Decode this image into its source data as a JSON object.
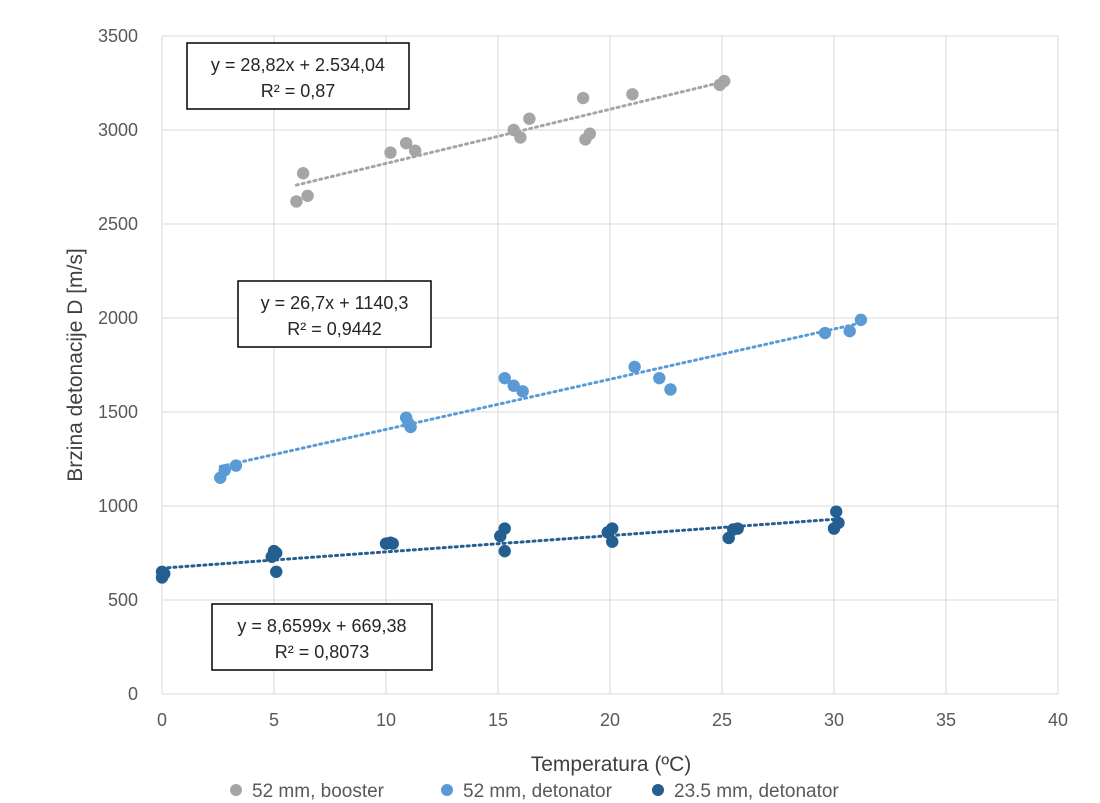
{
  "chart_data": {
    "type": "scatter",
    "xlabel": "Temperatura (ºC)",
    "ylabel": "Brzina detonacije D [m/s]",
    "xlim": [
      0,
      40
    ],
    "ylim": [
      0,
      3500
    ],
    "x_ticks": [
      0,
      5,
      10,
      15,
      20,
      25,
      30,
      35,
      40
    ],
    "y_ticks": [
      0,
      500,
      1000,
      1500,
      2000,
      2500,
      3000,
      3500
    ],
    "grid": true,
    "legend_position": "bottom",
    "series": [
      {
        "name": "52 mm, booster",
        "color": "#a5a5a5",
        "trendline": {
          "slope": 28.82,
          "intercept": 2534.04,
          "x_range": [
            6,
            25
          ]
        },
        "equation": "y = 28,82x + 2.534,04",
        "r2": "R² = 0,87",
        "points": [
          [
            6.0,
            2620
          ],
          [
            6.3,
            2770
          ],
          [
            6.5,
            2650
          ],
          [
            10.2,
            2880
          ],
          [
            10.9,
            2930
          ],
          [
            11.3,
            2890
          ],
          [
            15.7,
            3000
          ],
          [
            16.0,
            2960
          ],
          [
            16.4,
            3060
          ],
          [
            18.8,
            3170
          ],
          [
            18.9,
            2950
          ],
          [
            19.1,
            2980
          ],
          [
            21.0,
            3190
          ],
          [
            24.9,
            3240
          ],
          [
            25.1,
            3260
          ]
        ]
      },
      {
        "name": "52 mm, detonator",
        "color": "#5b9bd5",
        "trendline": {
          "slope": 26.7,
          "intercept": 1140.3,
          "x_range": [
            2.6,
            31
          ]
        },
        "equation": "y = 26,7x + 1140,3",
        "r2": "R² = 0,9442",
        "points": [
          [
            2.6,
            1150
          ],
          [
            2.8,
            1190
          ],
          [
            3.3,
            1215
          ],
          [
            10.9,
            1470
          ],
          [
            11.0,
            1440
          ],
          [
            11.1,
            1420
          ],
          [
            15.3,
            1680
          ],
          [
            15.7,
            1640
          ],
          [
            16.1,
            1610
          ],
          [
            21.1,
            1740
          ],
          [
            22.2,
            1680
          ],
          [
            22.7,
            1620
          ],
          [
            29.6,
            1920
          ],
          [
            30.7,
            1930
          ],
          [
            31.2,
            1990
          ]
        ]
      },
      {
        "name": "23.5 mm, detonator",
        "color": "#255e91",
        "trendline": {
          "slope": 8.6599,
          "intercept": 669.38,
          "x_range": [
            0,
            30.1
          ]
        },
        "equation": "y = 8,6599x + 669,38",
        "r2": "R² = 0,8073",
        "points": [
          [
            0.0,
            620
          ],
          [
            0.0,
            650
          ],
          [
            0.1,
            640
          ],
          [
            4.9,
            730
          ],
          [
            5.0,
            760
          ],
          [
            5.1,
            750
          ],
          [
            5.1,
            650
          ],
          [
            10.0,
            800
          ],
          [
            10.2,
            805
          ],
          [
            10.3,
            800
          ],
          [
            15.1,
            840
          ],
          [
            15.3,
            880
          ],
          [
            15.3,
            760
          ],
          [
            19.9,
            860
          ],
          [
            20.1,
            880
          ],
          [
            20.1,
            810
          ],
          [
            25.3,
            830
          ],
          [
            25.5,
            875
          ],
          [
            25.7,
            880
          ],
          [
            30.0,
            880
          ],
          [
            30.1,
            970
          ],
          [
            30.2,
            910
          ]
        ]
      }
    ]
  }
}
